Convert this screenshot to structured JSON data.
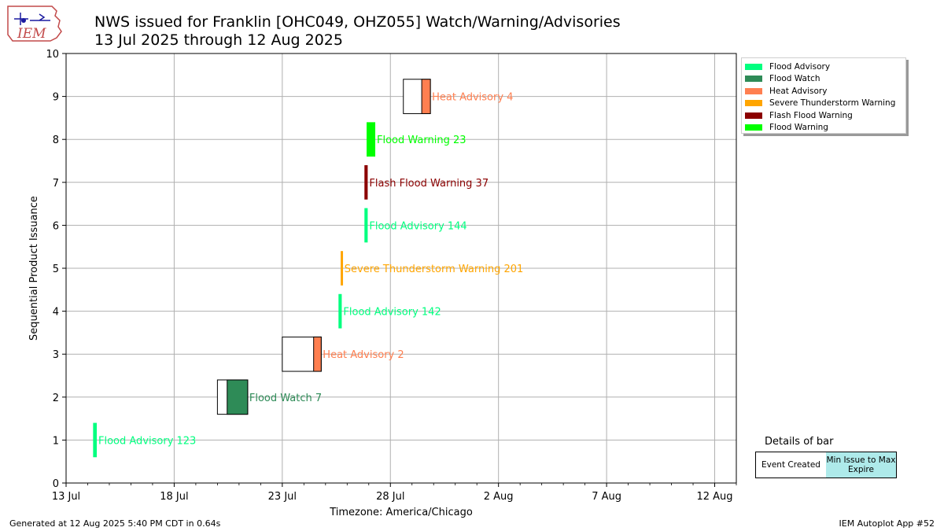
{
  "header": {
    "title_line1": "NWS issued for Franklin [OHC049, OHZ055]  Watch/Warning/Advisories",
    "title_line2": "13 Jul 2025 through 12 Aug 2025",
    "logo_text": "IEM"
  },
  "footer": {
    "left": "Generated at 12 Aug 2025 5:40 PM CDT in 0.64s",
    "right": "IEM Autoplot App #52"
  },
  "legend": {
    "items": [
      {
        "label": "Flood Advisory",
        "color": "#00FF7F"
      },
      {
        "label": "Flood Watch",
        "color": "#2E8B57"
      },
      {
        "label": "Heat Advisory",
        "color": "#FF7F50"
      },
      {
        "label": "Severe Thunderstorm Warning",
        "color": "#FFA500"
      },
      {
        "label": "Flash Flood Warning",
        "color": "#8B0000"
      },
      {
        "label": "Flood Warning",
        "color": "#00FF00"
      }
    ]
  },
  "details": {
    "title": "Details of bar",
    "left_label": "Event Created",
    "right_label": "Min Issue to Max Expire",
    "right_color": "#AEEAEA"
  },
  "chart_data": {
    "type": "bar",
    "orientation": "horizontal-timeline",
    "xlabel": "Timezone: America/Chicago",
    "ylabel": "Sequential Product Issuance",
    "x_range_days": [
      0,
      31
    ],
    "x_start_date": "13 Jul",
    "ylim": [
      0,
      10
    ],
    "grid": true,
    "legend_position": "outside-right",
    "x_tick_labels": [
      "13 Jul",
      "18 Jul",
      "23 Jul",
      "28 Jul",
      "2 Aug",
      "7 Aug",
      "12 Aug"
    ],
    "x_tick_days": [
      0,
      5,
      10,
      15,
      20,
      25,
      30
    ],
    "y_ticks": [
      0,
      1,
      2,
      3,
      4,
      5,
      6,
      7,
      8,
      9,
      10
    ],
    "events": [
      {
        "seq": 1,
        "label": "Flood Advisory 123",
        "created": 1.25,
        "issue": 1.25,
        "expire": 1.42,
        "color": "#00FF7F"
      },
      {
        "seq": 2,
        "label": "Flood Watch 7",
        "created": 7.0,
        "issue": 7.45,
        "expire": 8.4,
        "color": "#2E8B57"
      },
      {
        "seq": 3,
        "label": "Heat Advisory 2",
        "created": 10.0,
        "issue": 11.45,
        "expire": 11.8,
        "color": "#FF7F50"
      },
      {
        "seq": 4,
        "label": "Flood Advisory 142",
        "created": 12.6,
        "issue": 12.6,
        "expire": 12.75,
        "color": "#00FF7F"
      },
      {
        "seq": 5,
        "label": "Severe Thunderstorm Warning 201",
        "created": 12.7,
        "issue": 12.7,
        "expire": 12.8,
        "color": "#FFA500"
      },
      {
        "seq": 6,
        "label": "Flood Advisory 144",
        "created": 13.8,
        "issue": 13.8,
        "expire": 13.95,
        "color": "#00FF7F"
      },
      {
        "seq": 7,
        "label": "Flash Flood Warning 37",
        "created": 13.8,
        "issue": 13.8,
        "expire": 13.95,
        "color": "#8B0000"
      },
      {
        "seq": 8,
        "label": "Flood Warning 23",
        "created": 13.9,
        "issue": 13.9,
        "expire": 14.3,
        "color": "#00FF00"
      },
      {
        "seq": 9,
        "label": "Heat Advisory 4",
        "created": 15.6,
        "issue": 16.45,
        "expire": 16.85,
        "color": "#FF7F50"
      }
    ]
  }
}
